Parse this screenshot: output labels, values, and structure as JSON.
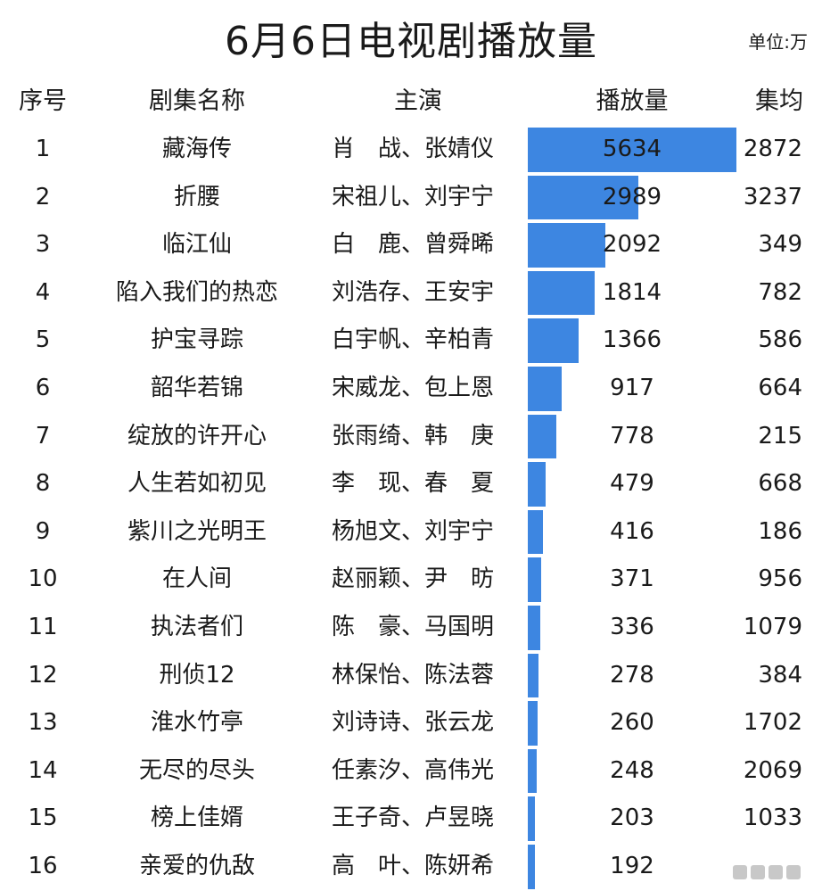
{
  "title": "6月6日电视剧播放量",
  "unit": "单位:万",
  "headers": {
    "rank": "序号",
    "name": "剧集名称",
    "cast": "主演",
    "views": "播放量",
    "avg": "集均"
  },
  "colors": {
    "bar": "#3d86e1"
  },
  "chart_data": {
    "type": "bar",
    "title": "6月6日电视剧播放量",
    "unit": "单位:万",
    "categories": [
      "藏海传",
      "折腰",
      "临江仙",
      "陷入我们的热恋",
      "护宝寻踪",
      "韶华若锦",
      "绽放的许开心",
      "人生若如初见",
      "紫川之光明王",
      "在人间",
      "执法者们",
      "刑侦12",
      "淮水竹亭",
      "无尽的尽头",
      "榜上佳婿",
      "亲爱的仇敌"
    ],
    "ylim": [
      0,
      5634
    ],
    "rows": [
      {
        "rank": "1",
        "name": "藏海传",
        "cast": "肖　战、张婧仪",
        "views": 5634,
        "avg": "2872"
      },
      {
        "rank": "2",
        "name": "折腰",
        "cast": "宋祖儿、刘宇宁",
        "views": 2989,
        "avg": "3237"
      },
      {
        "rank": "3",
        "name": "临江仙",
        "cast": "白　鹿、曾舜晞",
        "views": 2092,
        "avg": "349"
      },
      {
        "rank": "4",
        "name": "陷入我们的热恋",
        "cast": "刘浩存、王安宇",
        "views": 1814,
        "avg": "782"
      },
      {
        "rank": "5",
        "name": "护宝寻踪",
        "cast": "白宇帆、辛柏青",
        "views": 1366,
        "avg": "586"
      },
      {
        "rank": "6",
        "name": "韶华若锦",
        "cast": "宋威龙、包上恩",
        "views": 917,
        "avg": "664"
      },
      {
        "rank": "7",
        "name": "绽放的许开心",
        "cast": "张雨绮、韩　庚",
        "views": 778,
        "avg": "215"
      },
      {
        "rank": "8",
        "name": "人生若如初见",
        "cast": "李　现、春　夏",
        "views": 479,
        "avg": "668"
      },
      {
        "rank": "9",
        "name": "紫川之光明王",
        "cast": "杨旭文、刘宇宁",
        "views": 416,
        "avg": "186"
      },
      {
        "rank": "10",
        "name": "在人间",
        "cast": "赵丽颖、尹　昉",
        "views": 371,
        "avg": "956"
      },
      {
        "rank": "11",
        "name": "执法者们",
        "cast": "陈　豪、马国明",
        "views": 336,
        "avg": "1079"
      },
      {
        "rank": "12",
        "name": "刑侦12",
        "cast": "林保怡、陈法蓉",
        "views": 278,
        "avg": "384"
      },
      {
        "rank": "13",
        "name": "淮水竹亭",
        "cast": "刘诗诗、张云龙",
        "views": 260,
        "avg": "1702"
      },
      {
        "rank": "14",
        "name": "无尽的尽头",
        "cast": "任素汐、高伟光",
        "views": 248,
        "avg": "2069"
      },
      {
        "rank": "15",
        "name": "榜上佳婿",
        "cast": "王子奇、卢昱晓",
        "views": 203,
        "avg": "1033"
      },
      {
        "rank": "16",
        "name": "亲爱的仇敌",
        "cast": "高　叶、陈妍希",
        "views": 192,
        "avg": ""
      }
    ]
  }
}
